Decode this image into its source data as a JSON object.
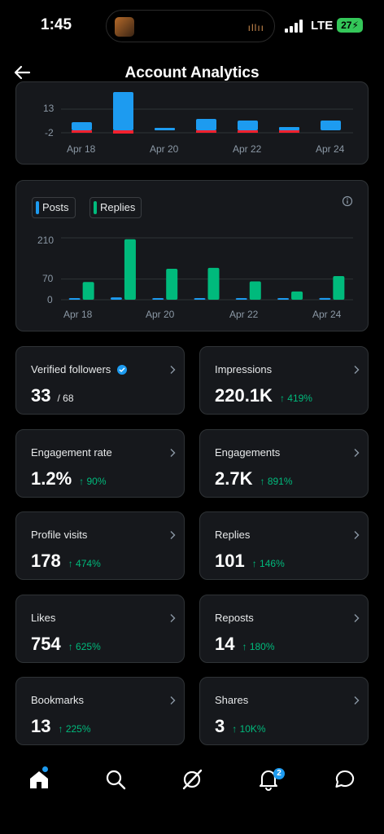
{
  "status_bar": {
    "time": "1:45",
    "network": "LTE",
    "battery": "27"
  },
  "header": {
    "title": "Account Analytics"
  },
  "top_chart": {
    "y_ticks": [
      "13",
      "-2"
    ],
    "x_ticks": [
      "Apr 18",
      "Apr 20",
      "Apr 22",
      "Apr 24"
    ]
  },
  "chart_data": {
    "type": "bar",
    "categories": [
      "Apr 18",
      "Apr 19",
      "Apr 20",
      "Apr 21",
      "Apr 22",
      "Apr 23",
      "Apr 24"
    ],
    "series": [
      {
        "name": "Posts",
        "color": "#1d9bf0",
        "values": [
          5,
          8,
          2,
          4,
          4,
          1,
          6
        ]
      },
      {
        "name": "Replies",
        "color": "#00ba7c",
        "values": [
          60,
          205,
          105,
          108,
          62,
          28,
          80
        ]
      }
    ],
    "y_ticks": [
      "210",
      "70",
      "0"
    ],
    "x_ticks": [
      "Apr 18",
      "Apr 20",
      "Apr 22",
      "Apr 24"
    ],
    "ylim": [
      0,
      210
    ],
    "info_icon": "info-icon"
  },
  "stats": {
    "verified_followers": {
      "label": "Verified followers",
      "value": "33",
      "total": "/ 68"
    },
    "impressions": {
      "label": "Impressions",
      "value": "220.1K",
      "delta": "↑ 419%"
    },
    "engagement_rate": {
      "label": "Engagement rate",
      "value": "1.2%",
      "delta": "↑ 90%"
    },
    "engagements": {
      "label": "Engagements",
      "value": "2.7K",
      "delta": "↑ 891%"
    },
    "profile_visits": {
      "label": "Profile visits",
      "value": "178",
      "delta": "↑ 474%"
    },
    "replies": {
      "label": "Replies",
      "value": "101",
      "delta": "↑ 146%"
    },
    "likes": {
      "label": "Likes",
      "value": "754",
      "delta": "↑ 625%"
    },
    "reposts": {
      "label": "Reposts",
      "value": "14",
      "delta": "↑ 180%"
    },
    "bookmarks": {
      "label": "Bookmarks",
      "value": "13",
      "delta": "↑ 225%"
    },
    "shares": {
      "label": "Shares",
      "value": "3",
      "delta": "↑ 10K%"
    }
  },
  "tab_bar": {
    "items": [
      "home-icon",
      "search-icon",
      "grok-icon",
      "notifications-icon",
      "messages-icon"
    ],
    "notifications_badge": "2"
  },
  "colors": {
    "posts": "#1d9bf0",
    "replies": "#00ba7c",
    "negative": "#f4212e",
    "delta": "#00ba7c"
  }
}
